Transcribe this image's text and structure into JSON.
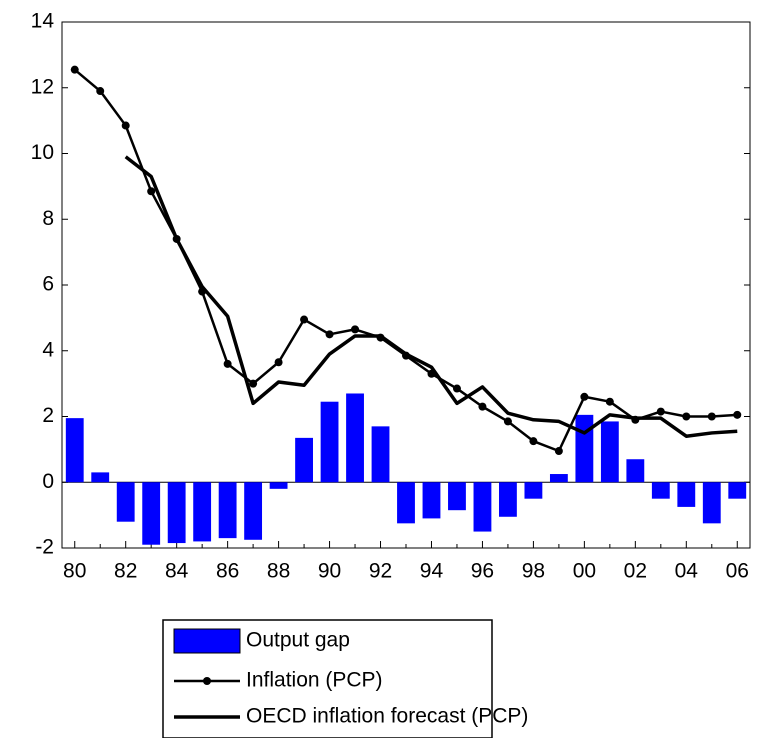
{
  "chart_data": {
    "type": "bar_line",
    "categories": [
      "80",
      null,
      "82",
      null,
      "84",
      null,
      "86",
      null,
      "88",
      null,
      "90",
      null,
      "92",
      null,
      "94",
      null,
      "96",
      null,
      "98",
      null,
      "00",
      null,
      "02",
      null,
      "04",
      null,
      "06"
    ],
    "series": [
      {
        "name": "Output gap",
        "type": "bar",
        "color": "#0000ff",
        "values": [
          1.95,
          0.3,
          -1.2,
          -1.9,
          -1.85,
          -1.8,
          -1.7,
          -1.75,
          -0.2,
          1.35,
          2.45,
          2.7,
          1.7,
          -1.25,
          -1.1,
          -0.85,
          -1.5,
          -1.05,
          -0.5,
          0.25,
          2.05,
          1.85,
          0.7,
          -0.5,
          -0.75,
          -1.25,
          -0.5
        ]
      },
      {
        "name": "Inflation (PCP)",
        "type": "line",
        "markers": true,
        "color": "#000000",
        "values": [
          12.55,
          11.9,
          10.85,
          8.85,
          7.4,
          5.8,
          3.6,
          3.0,
          3.65,
          4.95,
          4.5,
          4.65,
          4.4,
          3.85,
          3.3,
          2.85,
          2.3,
          1.85,
          1.25,
          0.95,
          2.6,
          2.45,
          1.9,
          2.15,
          2.0,
          2.0,
          2.05
        ]
      },
      {
        "name": "OECD inflation forecast (PCP)",
        "type": "line",
        "markers": false,
        "color": "#000000",
        "values": [
          null,
          null,
          9.9,
          9.3,
          7.4,
          5.95,
          5.05,
          2.4,
          3.05,
          2.95,
          3.9,
          4.45,
          4.45,
          3.9,
          3.5,
          2.4,
          2.9,
          2.1,
          1.9,
          1.85,
          1.5,
          2.05,
          1.95,
          1.95,
          1.4,
          1.5,
          1.55
        ]
      }
    ],
    "ylim": [
      -2,
      14
    ],
    "yticks": [
      -2,
      0,
      2,
      4,
      6,
      8,
      10,
      12,
      14
    ],
    "grid": false,
    "legend": "bottom"
  }
}
